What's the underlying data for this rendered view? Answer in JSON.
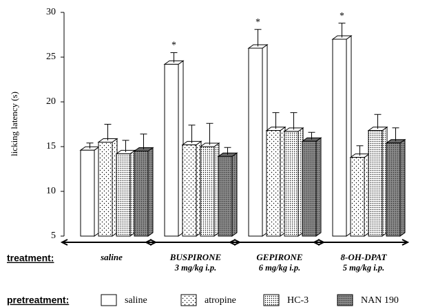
{
  "chart_data": {
    "type": "bar3d",
    "y_label": "licking latency (s)",
    "x_label": "treatment:",
    "legend_title": "pretreatment:",
    "categories": [
      [
        "saline"
      ],
      [
        "BUSPIRONE",
        "3 mg/kg i.p."
      ],
      [
        "GEPIRONE",
        "6 mg/kg i.p."
      ],
      [
        "8-OH-DPAT",
        "5 mg/kg i.p."
      ]
    ],
    "series": [
      {
        "name": "saline",
        "color": "#ffffff",
        "pattern": "none",
        "values": [
          14.6,
          24.2,
          26.0,
          27.0
        ],
        "errors": [
          0.8,
          1.3,
          2.1,
          1.8
        ],
        "markers": [
          null,
          "*",
          "*",
          "*"
        ]
      },
      {
        "name": "atropine",
        "color": "#ffffff",
        "pattern": "sparse-dots",
        "values": [
          15.5,
          15.2,
          16.8,
          13.8
        ],
        "errors": [
          2.0,
          2.2,
          2.0,
          1.3
        ]
      },
      {
        "name": "HC-3",
        "color": "#ffffff",
        "pattern": "dense-dots",
        "values": [
          14.2,
          15.0,
          16.7,
          16.8
        ],
        "errors": [
          1.5,
          2.6,
          2.1,
          1.8
        ]
      },
      {
        "name": "NAN 190",
        "color": "#8c8c8c",
        "pattern": "dark-dots",
        "values": [
          14.5,
          13.9,
          15.6,
          15.4
        ],
        "errors": [
          1.9,
          1.0,
          1.0,
          1.7
        ]
      }
    ],
    "ylim": [
      5,
      30
    ],
    "yticks": [
      5,
      10,
      15,
      20,
      25,
      30
    ]
  }
}
